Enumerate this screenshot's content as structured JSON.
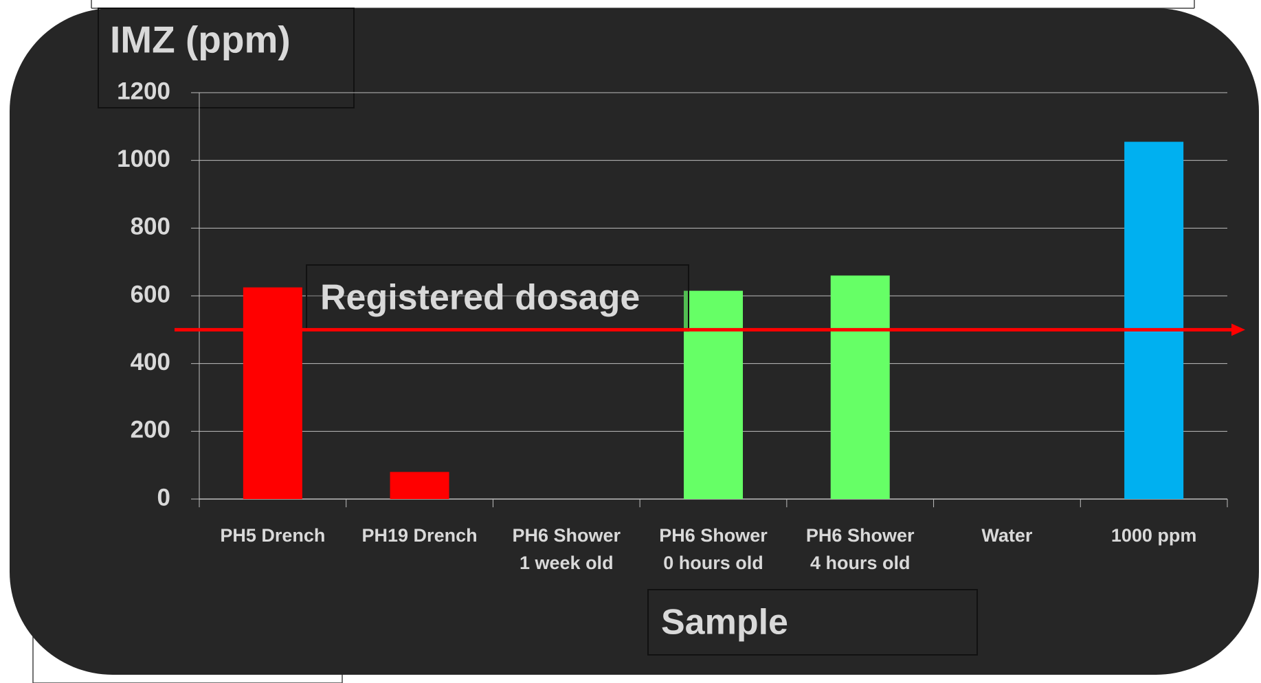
{
  "chart_data": {
    "type": "bar",
    "title": "IMZ  (ppm)",
    "x_label": "Sample",
    "categories": [
      "PH5 Drench",
      "PH19 Drench",
      "PH6 Shower\n1 week old",
      "PH6 Shower\n0 hours old",
      "PH6 Shower\n4 hours old",
      "Water",
      "1000 ppm"
    ],
    "values": [
      625,
      80,
      0,
      615,
      660,
      0,
      1055
    ],
    "colors": [
      "#ff0000",
      "#ff0000",
      "#66ff66",
      "#66ff66",
      "#66ff66",
      "#00b0f0",
      "#00b0f0"
    ],
    "ylim": [
      0,
      1200
    ],
    "yticks": [
      0,
      200,
      400,
      600,
      800,
      1000,
      1200
    ],
    "grid": true,
    "reference_line": {
      "value": 500,
      "color": "#ff0000",
      "label": "Registered dosage"
    }
  }
}
